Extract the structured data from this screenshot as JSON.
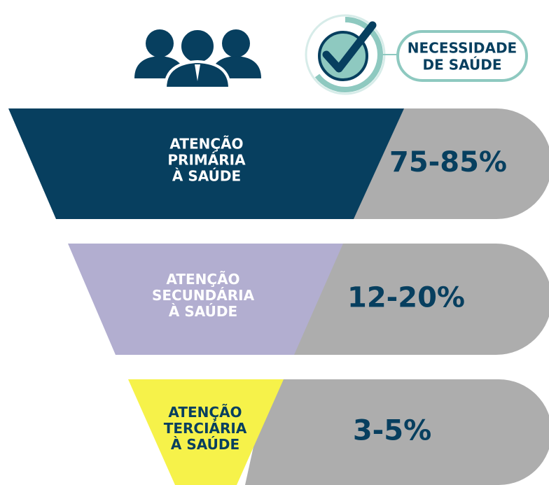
{
  "header": {
    "badge_lines": [
      "NECESSIDADE",
      "DE SAÚDE"
    ]
  },
  "levels": [
    {
      "label_lines": [
        "ATENÇÃO",
        "PRIMÁRIA",
        "À SAÚDE"
      ],
      "range": "75-85%",
      "color": "#073f5f",
      "text_color": "#ffffff"
    },
    {
      "label_lines": [
        "ATENÇÃO",
        "SECUNDÁRIA",
        "À SAÚDE"
      ],
      "range": "12-20%",
      "color": "#b2aed0",
      "text_color": "#ffffff"
    },
    {
      "label_lines": [
        "ATENÇÃO",
        "TERCIÁRIA",
        "À SAÚDE"
      ],
      "range": "3-5%",
      "color": "#f6f24a",
      "text_color": "#073f5f"
    }
  ]
}
